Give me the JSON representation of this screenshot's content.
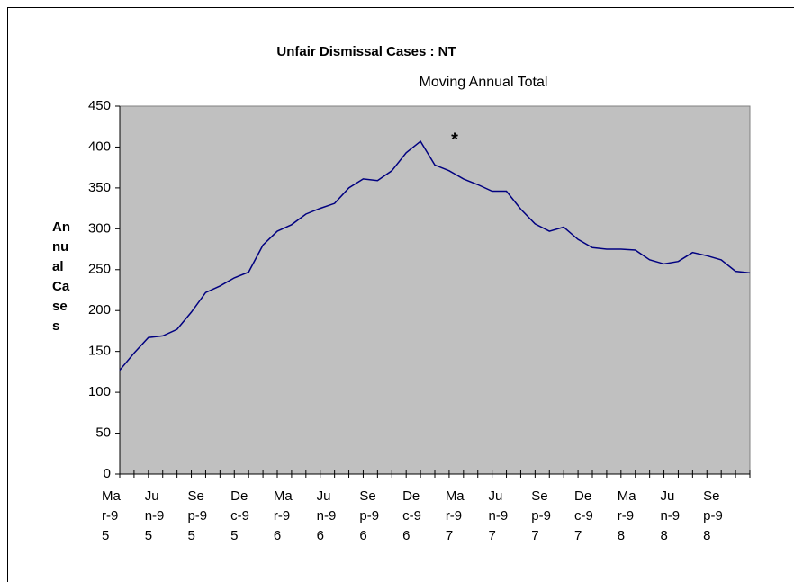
{
  "chart_data": {
    "type": "line",
    "title": "Unfair Dismissal Cases : NT",
    "subtitle": "Moving Annual Total",
    "y_label": "Annual Cases",
    "annotation": "*",
    "categories": [
      "Mar-95",
      null,
      null,
      "Jun-95",
      null,
      null,
      "Sep-95",
      null,
      null,
      "Dec-95",
      null,
      null,
      "Mar-96",
      null,
      null,
      "Jun-96",
      null,
      null,
      "Sep-96",
      null,
      null,
      "Dec-96",
      null,
      null,
      "Mar-97",
      null,
      null,
      "Jun-97",
      null,
      null,
      "Sep-97",
      null,
      null,
      "Dec-97",
      null,
      null,
      "Mar-98",
      null,
      null,
      "Jun-98",
      null,
      null,
      "Sep-98",
      null,
      null
    ],
    "series": [
      {
        "name": "Annual Cases",
        "color": "#000080",
        "values": [
          127,
          148,
          167,
          169,
          177,
          198,
          222,
          230,
          240,
          247,
          280,
          297,
          305,
          318,
          325,
          331,
          350,
          361,
          359,
          371,
          393,
          407,
          378,
          371,
          361,
          354,
          346,
          346,
          324,
          306,
          297,
          302,
          287,
          277,
          275,
          275,
          274,
          262,
          257,
          260,
          271,
          267,
          262,
          248,
          246
        ]
      }
    ],
    "ylim": [
      0,
      450
    ],
    "yticks": [
      0,
      50,
      100,
      150,
      200,
      250,
      300,
      350,
      400,
      450
    ],
    "plot_background": "#c0c0c0",
    "grid": false
  }
}
